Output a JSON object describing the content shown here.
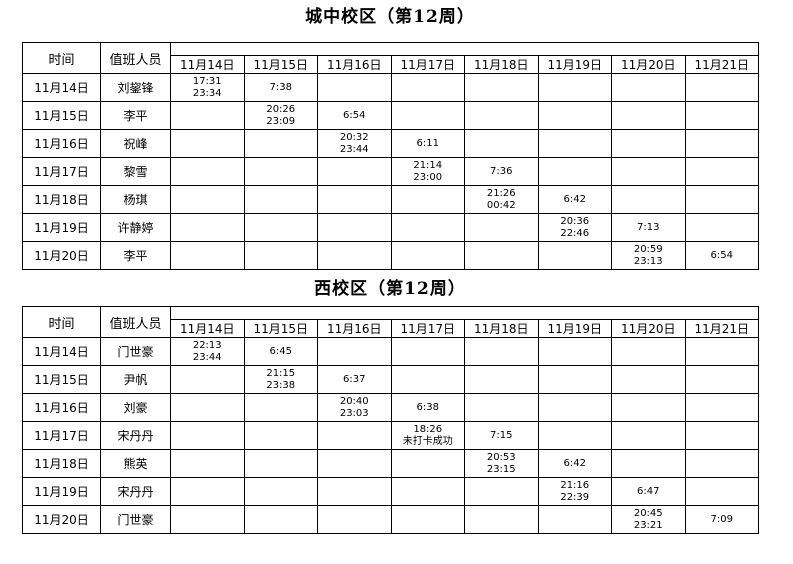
{
  "page": {
    "background": "#ffffff",
    "border_color": "#000000",
    "text_color": "#000000"
  },
  "tables": [
    {
      "title": "城中校区（第12周）",
      "header": {
        "time_label": "时间",
        "person_label": "值班人员"
      },
      "dates": [
        "11月14日",
        "11月15日",
        "11月16日",
        "11月17日",
        "11月18日",
        "11月19日",
        "11月20日",
        "11月21日"
      ],
      "rows": [
        {
          "date": "11月14日",
          "person": "刘鋆锋",
          "cells": [
            "17:31\n23:34",
            "7:38",
            "",
            "",
            "",
            "",
            "",
            ""
          ]
        },
        {
          "date": "11月15日",
          "person": "李平",
          "cells": [
            "",
            "20:26\n23:09",
            "6:54",
            "",
            "",
            "",
            "",
            ""
          ]
        },
        {
          "date": "11月16日",
          "person": "祝峰",
          "cells": [
            "",
            "",
            "20:32\n23:44",
            "6:11",
            "",
            "",
            "",
            ""
          ]
        },
        {
          "date": "11月17日",
          "person": "黎雪",
          "cells": [
            "",
            "",
            "",
            "21:14\n23:00",
            "7:36",
            "",
            "",
            ""
          ]
        },
        {
          "date": "11月18日",
          "person": "杨琪",
          "cells": [
            "",
            "",
            "",
            "",
            "21:26\n00:42",
            "6:42",
            "",
            ""
          ]
        },
        {
          "date": "11月19日",
          "person": "许静婷",
          "cells": [
            "",
            "",
            "",
            "",
            "",
            "20:36\n22:46",
            "7:13",
            ""
          ]
        },
        {
          "date": "11月20日",
          "person": "李平",
          "cells": [
            "",
            "",
            "",
            "",
            "",
            "",
            "20:59\n23:13",
            "6:54"
          ]
        }
      ]
    },
    {
      "title": "西校区（第12周）",
      "header": {
        "time_label": "时间",
        "person_label": "值班人员"
      },
      "dates": [
        "11月14日",
        "11月15日",
        "11月16日",
        "11月17日",
        "11月18日",
        "11月19日",
        "11月20日",
        "11月21日"
      ],
      "rows": [
        {
          "date": "11月14日",
          "person": "门世豪",
          "cells": [
            "22:13\n23:44",
            "6:45",
            "",
            "",
            "",
            "",
            "",
            ""
          ]
        },
        {
          "date": "11月15日",
          "person": "尹帆",
          "cells": [
            "",
            "21:15\n23:38",
            "6:37",
            "",
            "",
            "",
            "",
            ""
          ]
        },
        {
          "date": "11月16日",
          "person": "刘豪",
          "cells": [
            "",
            "",
            "20:40\n23:03",
            "6:38",
            "",
            "",
            "",
            ""
          ]
        },
        {
          "date": "11月17日",
          "person": "宋丹丹",
          "cells": [
            "",
            "",
            "",
            "18:26\n未打卡成功",
            "7:15",
            "",
            "",
            ""
          ]
        },
        {
          "date": "11月18日",
          "person": "熊英",
          "cells": [
            "",
            "",
            "",
            "",
            "20:53\n23:15",
            "6:42",
            "",
            ""
          ]
        },
        {
          "date": "11月19日",
          "person": "宋丹丹",
          "cells": [
            "",
            "",
            "",
            "",
            "",
            "21:16\n22:39",
            "6:47",
            ""
          ]
        },
        {
          "date": "11月20日",
          "person": "门世豪",
          "cells": [
            "",
            "",
            "",
            "",
            "",
            "",
            "20:45\n23:21",
            "7:09"
          ]
        }
      ]
    }
  ]
}
